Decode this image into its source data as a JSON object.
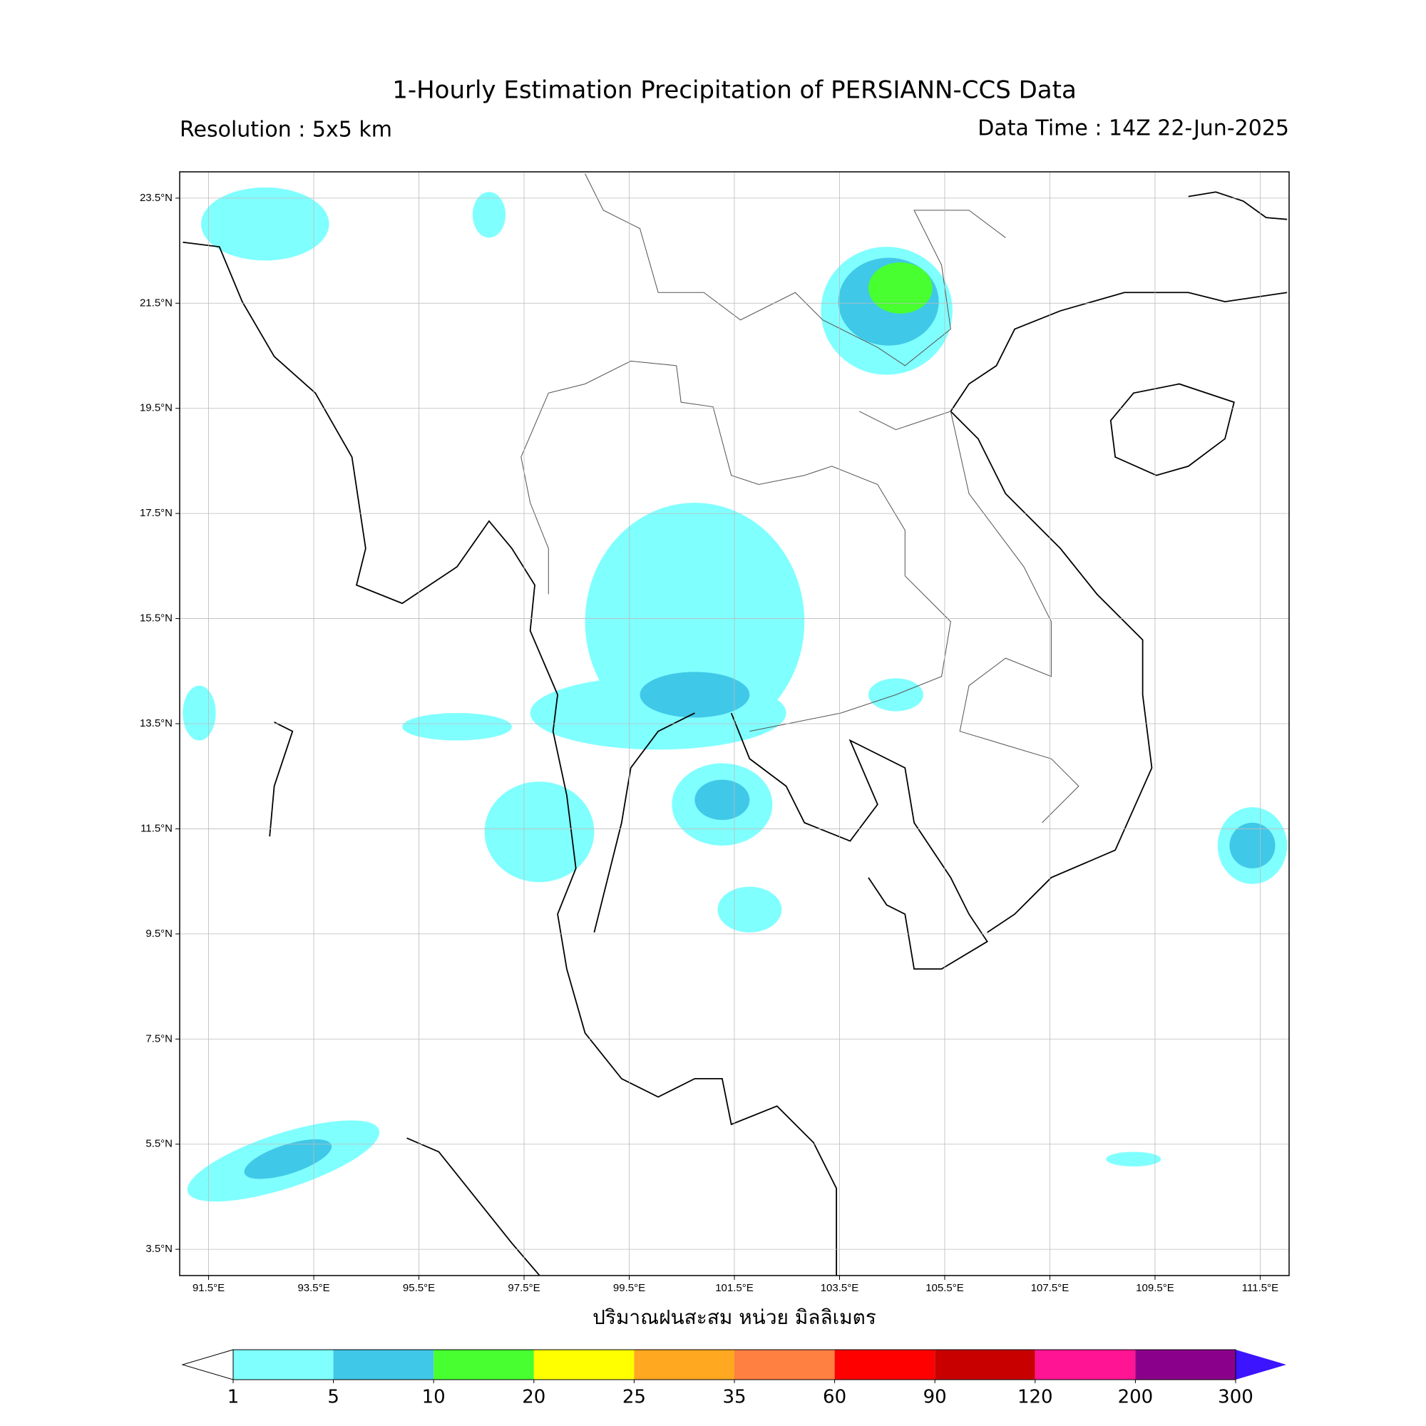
{
  "map": {
    "title": "1-Hourly Estimation Precipitation of PERSIANN-CCS Data",
    "resolution": "Resolution : 5x5 km",
    "data_time": "Data Time : 14Z 22-Jun-2025",
    "xlabel": "ปริมาณฝนสะสม หน่วย มิลลิเมตร",
    "xlim": [
      90.95,
      112.05
    ],
    "ylim": [
      3,
      24
    ],
    "grid": true,
    "xticks": [
      {
        "value": 91.5,
        "label": "91.5°E"
      },
      {
        "value": 93.5,
        "label": "93.5°E"
      },
      {
        "value": 95.5,
        "label": "95.5°E"
      },
      {
        "value": 97.5,
        "label": "97.5°E"
      },
      {
        "value": 99.5,
        "label": "99.5°E"
      },
      {
        "value": 101.5,
        "label": "101.5°E"
      },
      {
        "value": 103.5,
        "label": "103.5°E"
      },
      {
        "value": 105.5,
        "label": "105.5°E"
      },
      {
        "value": 107.5,
        "label": "107.5°E"
      },
      {
        "value": 109.5,
        "label": "109.5°E"
      },
      {
        "value": 111.5,
        "label": "111.5°E"
      }
    ],
    "yticks": [
      {
        "value": 23.5,
        "label": "23.5°N"
      },
      {
        "value": 21.5,
        "label": "21.5°N"
      },
      {
        "value": 19.5,
        "label": "19.5°N"
      },
      {
        "value": 17.5,
        "label": "17.5°N"
      },
      {
        "value": 15.5,
        "label": "15.5°N"
      },
      {
        "value": 13.5,
        "label": "13.5°N"
      },
      {
        "value": 11.5,
        "label": "11.5°N"
      },
      {
        "value": 9.5,
        "label": "9.5°N"
      },
      {
        "value": 7.5,
        "label": "7.5°N"
      },
      {
        "value": 5.5,
        "label": "5.5°N"
      },
      {
        "value": 3.5,
        "label": "3.5°N"
      }
    ],
    "colorbar": {
      "levels": [
        1,
        5,
        10,
        20,
        25,
        35,
        60,
        90,
        120,
        200,
        300
      ],
      "colors": [
        "#80ffff",
        "#40c8e8",
        "#48ff30",
        "#ffff00",
        "#ffa820",
        "#ff8040",
        "#ff0000",
        "#c80000",
        "#ff1493",
        "#8b008b"
      ],
      "under_color": "#ffffff",
      "over_color": "#3c14ff"
    }
  }
}
